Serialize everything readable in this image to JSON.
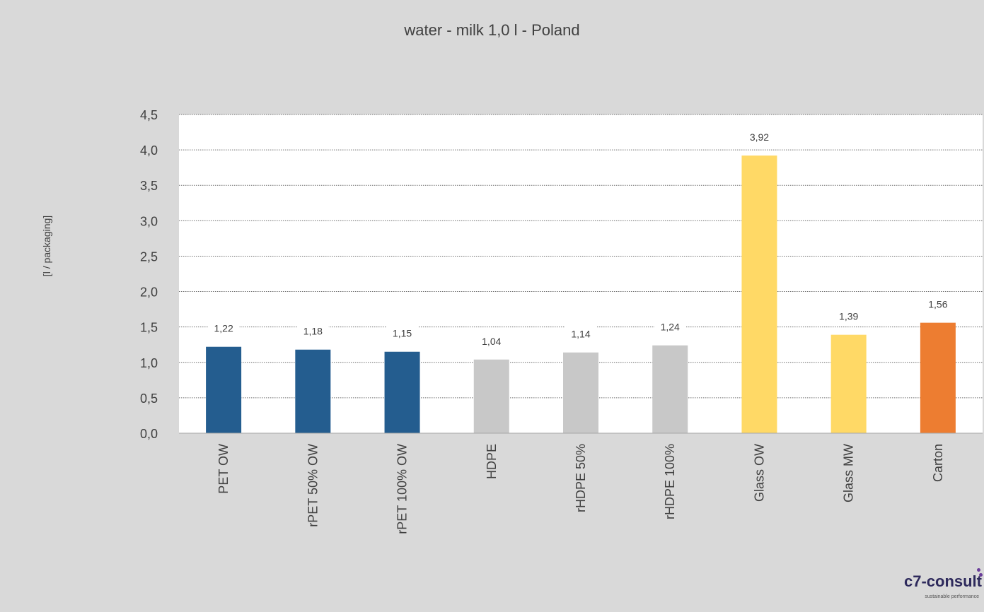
{
  "chart_data": {
    "type": "bar",
    "title": "water - milk 1,0 l - Poland",
    "xlabel": "",
    "ylabel": "[l / packaging]",
    "ylim": [
      0,
      4.5
    ],
    "ytick_step": 0.5,
    "ytick_labels": [
      "0,0",
      "0,5",
      "1,0",
      "1,5",
      "2,0",
      "2,5",
      "3,0",
      "3,5",
      "4,0",
      "4,5"
    ],
    "categories": [
      "PET OW",
      "rPET 50% OW",
      "rPET 100% OW",
      "HDPE",
      "rHDPE 50%",
      "rHDPE 100%",
      "Glass OW",
      "Glass MW",
      "Carton"
    ],
    "values": [
      1.22,
      1.18,
      1.15,
      1.04,
      1.14,
      1.24,
      3.92,
      1.39,
      1.56
    ],
    "value_labels": [
      "1,22",
      "1,18",
      "1,15",
      "1,04",
      "1,14",
      "1,24",
      "3,92",
      "1,39",
      "1,56"
    ],
    "bar_colors": [
      "#245d8f",
      "#245d8f",
      "#245d8f",
      "#c8c8c8",
      "#c8c8c8",
      "#c8c8c8",
      "#ffd966",
      "#ffd966",
      "#ed7d31"
    ],
    "grid": true,
    "legend": "none",
    "plot_background": "#ffffff",
    "background": "#d9d9d9"
  },
  "logo": {
    "name": "c7-consult",
    "tagline": "sustainable performance"
  }
}
